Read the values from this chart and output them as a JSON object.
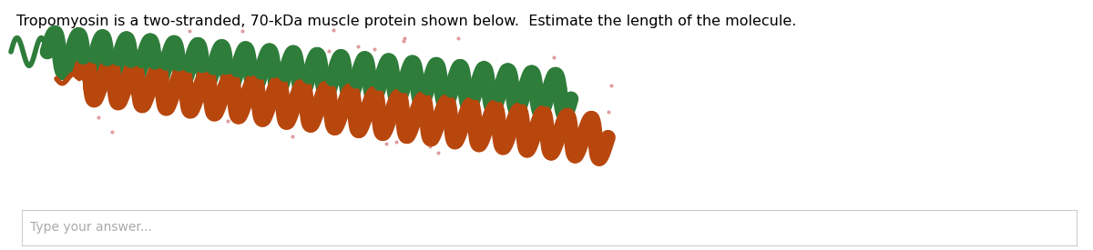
{
  "title_text": "Tropomyosin is a two-stranded, 70-kDa muscle protein shown below.  Estimate the length of the molecule.",
  "title_fontsize": 11.5,
  "bg_color": "#ffffff",
  "helix_color_1": "#2e7d3a",
  "helix_color_2": "#b8470e",
  "box_text": "Type your answer...",
  "n_turns": 22,
  "lw_ribbon": 14,
  "dot_color": "#d9868a",
  "dot_alpha": 0.7,
  "dot_size": 4
}
